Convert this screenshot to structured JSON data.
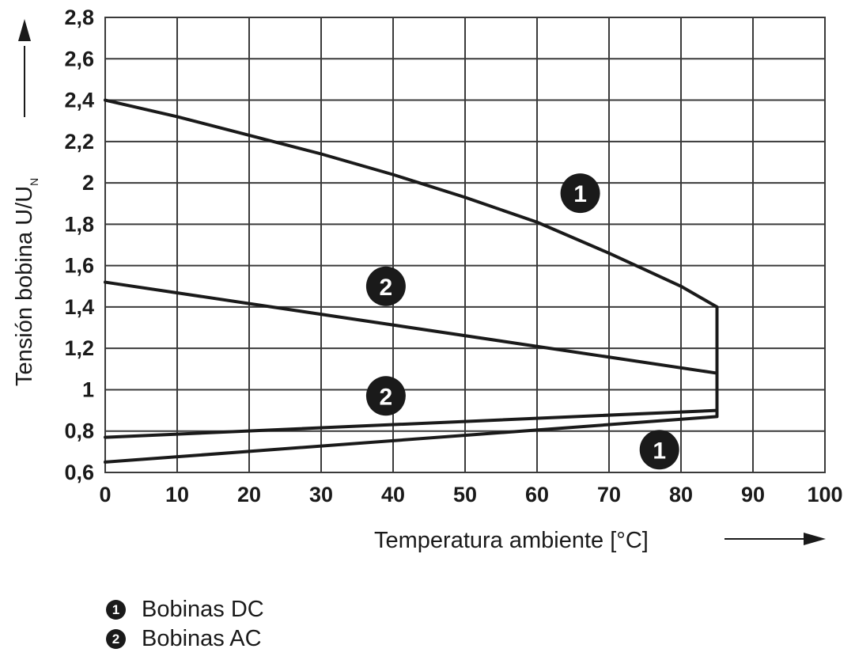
{
  "chart_data": {
    "type": "line",
    "xlabel": "Temperatura ambiente [°C]",
    "ylabel": "Tensión bobina U/U",
    "ylabel_subscript": "N",
    "xlim": [
      0,
      100
    ],
    "ylim": [
      0.6,
      2.8
    ],
    "x_ticks": [
      "0",
      "10",
      "20",
      "30",
      "40",
      "50",
      "60",
      "70",
      "80",
      "90",
      "100"
    ],
    "y_ticks": [
      "0,6",
      "0,8",
      "1",
      "1,2",
      "1,4",
      "1,6",
      "1,8",
      "2",
      "2,2",
      "2,4",
      "2,6",
      "2,8"
    ],
    "grid": true,
    "series": [
      {
        "name": "Bobinas DC",
        "marker": "1",
        "part": "upper",
        "x": [
          0,
          10,
          20,
          30,
          40,
          50,
          60,
          70,
          75,
          80,
          85
        ],
        "y": [
          2.4,
          2.32,
          2.23,
          2.14,
          2.04,
          1.93,
          1.81,
          1.66,
          1.58,
          1.5,
          1.4
        ]
      },
      {
        "name": "Bobinas DC",
        "marker": "1",
        "part": "lower",
        "x": [
          0,
          85
        ],
        "y": [
          0.65,
          0.87
        ]
      },
      {
        "name": "Bobinas AC",
        "marker": "2",
        "part": "upper",
        "x": [
          0,
          85
        ],
        "y": [
          1.52,
          1.08
        ]
      },
      {
        "name": "Bobinas AC",
        "marker": "2",
        "part": "lower",
        "x": [
          0,
          85
        ],
        "y": [
          0.77,
          0.9
        ]
      }
    ],
    "vertical_limit": {
      "x": 85,
      "y_from": 0.87,
      "y_to": 1.4
    },
    "annotations": [
      {
        "text": "1",
        "x": 66,
        "y": 1.95
      },
      {
        "text": "2",
        "x": 39,
        "y": 1.5
      },
      {
        "text": "2",
        "x": 39,
        "y": 0.97
      },
      {
        "text": "1",
        "x": 77,
        "y": 0.71
      }
    ],
    "legend": [
      {
        "marker": "1",
        "label": "Bobinas DC"
      },
      {
        "marker": "2",
        "label": "Bobinas AC"
      }
    ],
    "colors": {
      "line": "#1a1a1a",
      "grid": "#3a3a3a",
      "background": "#ffffff"
    }
  }
}
